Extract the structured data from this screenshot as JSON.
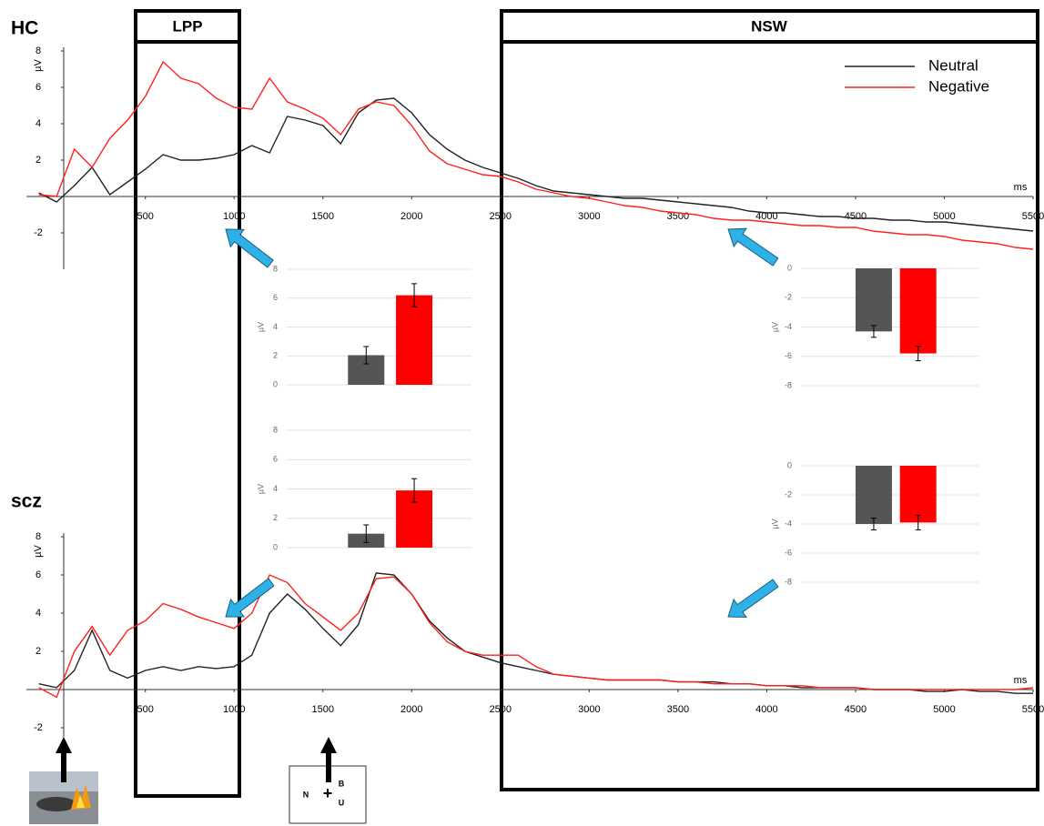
{
  "chart_data": [
    {
      "type": "line",
      "title": "HC",
      "xlabel": "ms",
      "ylabel": "µV",
      "annotations": [
        "LPP",
        "NSW"
      ],
      "x": [
        -100,
        0,
        100,
        200,
        300,
        400,
        500,
        600,
        700,
        800,
        900,
        1000,
        1100,
        1200,
        1300,
        1400,
        1500,
        1600,
        1700,
        1800,
        1900,
        2000,
        2100,
        2200,
        2300,
        2400,
        2500,
        2600,
        2700,
        2800,
        2900,
        3000,
        3100,
        3200,
        3300,
        3400,
        3500,
        3600,
        3700,
        3800,
        3900,
        4000,
        4100,
        4200,
        4300,
        4400,
        4500,
        4600,
        4700,
        4800,
        4900,
        5000,
        5100,
        5200,
        5300,
        5400,
        5500
      ],
      "series": [
        {
          "name": "Neutral",
          "color": "#222222",
          "values": [
            0.2,
            -0.3,
            0.6,
            1.6,
            0.1,
            0.8,
            1.5,
            2.3,
            2.0,
            2.0,
            2.1,
            2.3,
            2.8,
            2.4,
            4.4,
            4.2,
            3.9,
            2.9,
            4.6,
            5.3,
            5.4,
            4.6,
            3.4,
            2.6,
            2.0,
            1.6,
            1.3,
            1.0,
            0.6,
            0.3,
            0.2,
            0.1,
            0.0,
            -0.1,
            -0.1,
            -0.2,
            -0.3,
            -0.4,
            -0.5,
            -0.6,
            -0.8,
            -0.9,
            -0.9,
            -1.0,
            -1.1,
            -1.1,
            -1.2,
            -1.2,
            -1.3,
            -1.3,
            -1.4,
            -1.4,
            -1.5,
            -1.6,
            -1.7,
            -1.8,
            -1.9
          ]
        },
        {
          "name": "Negative",
          "color": "#ff2020",
          "values": [
            0.1,
            0.0,
            2.6,
            1.6,
            3.2,
            4.2,
            5.5,
            7.4,
            6.5,
            6.2,
            5.4,
            4.9,
            4.8,
            6.5,
            5.2,
            4.8,
            4.3,
            3.4,
            4.8,
            5.2,
            5.0,
            3.9,
            2.5,
            1.8,
            1.5,
            1.2,
            1.1,
            0.8,
            0.4,
            0.2,
            0.0,
            -0.1,
            -0.3,
            -0.5,
            -0.6,
            -0.8,
            -0.9,
            -1.0,
            -1.2,
            -1.3,
            -1.3,
            -1.4,
            -1.5,
            -1.6,
            -1.6,
            -1.7,
            -1.7,
            -1.9,
            -2.0,
            -2.1,
            -2.1,
            -2.2,
            -2.4,
            -2.5,
            -2.6,
            -2.8,
            -2.9
          ]
        }
      ],
      "xlim": [
        -170,
        5500
      ],
      "xticks": [
        500,
        1000,
        1500,
        2000,
        2500,
        3000,
        3500,
        4000,
        4500,
        5000,
        5500
      ],
      "ylim": [
        -4,
        8
      ],
      "yticks": [
        -2,
        2,
        4,
        6,
        8
      ],
      "legend": "upper right"
    },
    {
      "type": "line",
      "title": "scz",
      "xlabel": "ms",
      "ylabel": "µV",
      "annotations": [
        "N",
        "+",
        "B",
        "U"
      ],
      "x": [
        -100,
        0,
        100,
        200,
        300,
        400,
        500,
        600,
        700,
        800,
        900,
        1000,
        1100,
        1200,
        1300,
        1400,
        1500,
        1600,
        1700,
        1800,
        1900,
        2000,
        2100,
        2200,
        2300,
        2400,
        2500,
        2600,
        2700,
        2800,
        2900,
        3000,
        3100,
        3200,
        3300,
        3400,
        3500,
        3600,
        3700,
        3800,
        3900,
        4000,
        4100,
        4200,
        4300,
        4400,
        4500,
        4600,
        4700,
        4800,
        4900,
        5000,
        5100,
        5200,
        5300,
        5400,
        5500
      ],
      "series": [
        {
          "name": "Neutral",
          "color": "#222222",
          "values": [
            0.3,
            0.1,
            1.0,
            3.1,
            1.0,
            0.6,
            1.0,
            1.2,
            1.0,
            1.2,
            1.1,
            1.2,
            1.8,
            4.0,
            5.0,
            4.2,
            3.2,
            2.3,
            3.4,
            6.1,
            6.0,
            5.0,
            3.6,
            2.7,
            2.0,
            1.7,
            1.4,
            1.2,
            1.0,
            0.8,
            0.7,
            0.6,
            0.5,
            0.5,
            0.5,
            0.5,
            0.4,
            0.4,
            0.4,
            0.3,
            0.3,
            0.2,
            0.2,
            0.1,
            0.1,
            0.1,
            0.1,
            0.0,
            0.0,
            0.0,
            -0.1,
            -0.1,
            0.0,
            -0.1,
            -0.1,
            -0.2,
            -0.2
          ]
        },
        {
          "name": "Negative",
          "color": "#ff2020",
          "values": [
            0.1,
            -0.4,
            2.0,
            3.3,
            1.8,
            3.1,
            3.6,
            4.5,
            4.2,
            3.8,
            3.5,
            3.2,
            4.0,
            6.0,
            5.6,
            4.5,
            3.8,
            3.1,
            4.0,
            5.8,
            5.9,
            5.0,
            3.5,
            2.5,
            2.0,
            1.8,
            1.8,
            1.8,
            1.2,
            0.8,
            0.7,
            0.6,
            0.5,
            0.5,
            0.5,
            0.5,
            0.4,
            0.4,
            0.3,
            0.3,
            0.3,
            0.2,
            0.2,
            0.2,
            0.1,
            0.1,
            0.1,
            0.0,
            0.0,
            0.0,
            0.0,
            0.0,
            0.0,
            0.0,
            0.0,
            0.0,
            0.1
          ]
        }
      ],
      "xlim": [
        -170,
        5500
      ],
      "xticks": [
        500,
        1000,
        1500,
        2000,
        2500,
        3000,
        3500,
        4000,
        4500,
        5000,
        5500
      ],
      "ylim": [
        -2.5,
        8
      ],
      "yticks": [
        -2,
        2,
        4,
        6,
        8
      ]
    },
    {
      "type": "bar",
      "ylabel": "µV",
      "ylim": [
        0,
        8
      ],
      "yticks": [
        0,
        2,
        4,
        6,
        8
      ],
      "grid": true,
      "series": [
        {
          "color": "#555555",
          "values": [
            2.05
          ],
          "errors": [
            0.6
          ]
        },
        {
          "color": "#ff0000",
          "values": [
            6.2
          ],
          "errors": [
            0.8
          ]
        }
      ]
    },
    {
      "type": "bar",
      "ylabel": "µV",
      "ylim": [
        0,
        8
      ],
      "yticks": [
        0,
        2,
        4,
        6,
        8
      ],
      "grid": true,
      "series": [
        {
          "color": "#555555",
          "values": [
            0.95
          ],
          "errors": [
            0.6
          ]
        },
        {
          "color": "#ff0000",
          "values": [
            3.9
          ],
          "errors": [
            0.8
          ]
        }
      ]
    },
    {
      "type": "bar",
      "ylabel": "µV",
      "ylim": [
        -8,
        0
      ],
      "yticks": [
        0,
        -2,
        -4,
        -6,
        -8
      ],
      "grid": true,
      "series": [
        {
          "color": "#555555",
          "values": [
            -4.3
          ],
          "errors": [
            0.4
          ]
        },
        {
          "color": "#ff0000",
          "values": [
            -5.8
          ],
          "errors": [
            0.5
          ]
        }
      ]
    },
    {
      "type": "bar",
      "ylabel": "µV",
      "ylim": [
        -8,
        0
      ],
      "yticks": [
        0,
        -2,
        -4,
        -6,
        -8
      ],
      "grid": true,
      "series": [
        {
          "color": "#555555",
          "values": [
            -4.0
          ],
          "errors": [
            0.4
          ]
        },
        {
          "color": "#ff0000",
          "values": [
            -3.9
          ],
          "errors": [
            0.5
          ]
        }
      ]
    }
  ]
}
